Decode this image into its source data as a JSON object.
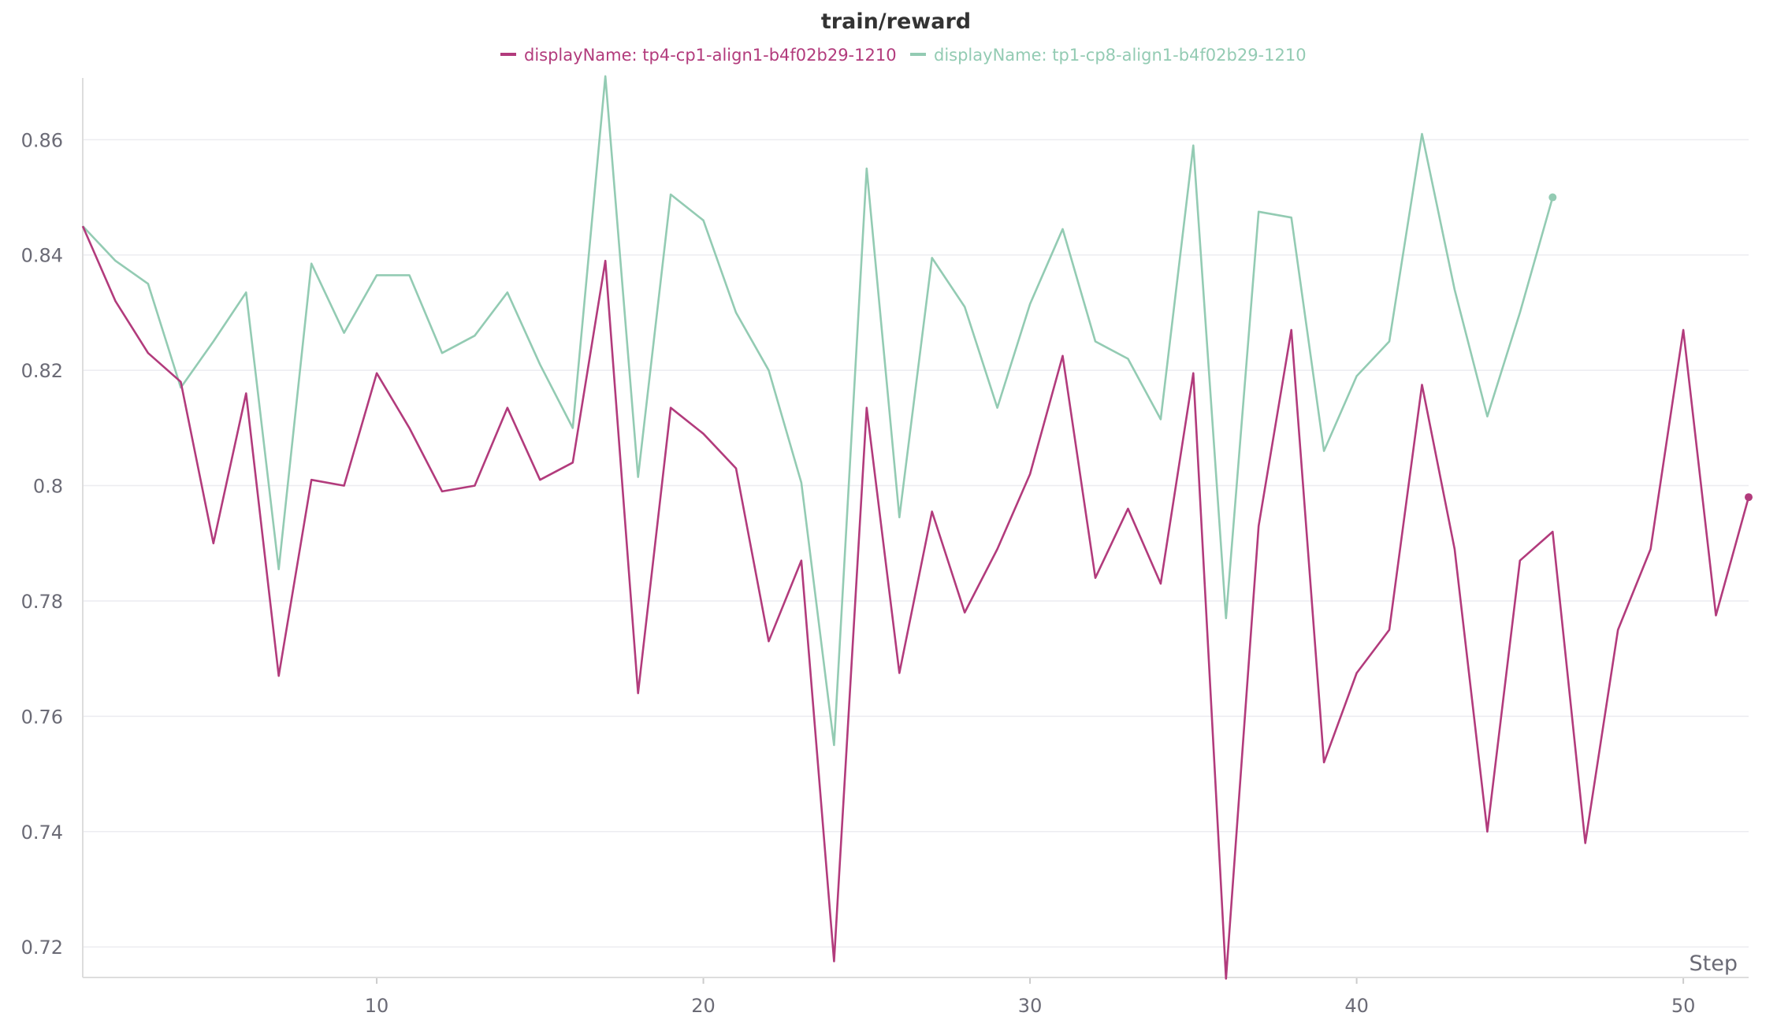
{
  "chart_data": {
    "type": "line",
    "title": "train/reward",
    "xlabel": "Step",
    "ylabel": "",
    "xlim": [
      1,
      52
    ],
    "ylim": [
      0.7147,
      0.8707
    ],
    "grid": true,
    "legend_placement": "top-center",
    "x_ticks": [
      10,
      20,
      30,
      40,
      50
    ],
    "x_tick_labels": [
      "10",
      "20",
      "30",
      "40",
      "50"
    ],
    "y_ticks": [
      0.72,
      0.74,
      0.76,
      0.78,
      0.8,
      0.82,
      0.84,
      0.86
    ],
    "y_tick_labels": [
      "0.72",
      "0.74",
      "0.76",
      "0.78",
      "0.8",
      "0.82",
      "0.84",
      "0.86"
    ],
    "series": [
      {
        "name": "displayName: tp4-cp1-align1-b4f02b29-1210",
        "color": "#b23b7c",
        "x_start": 1,
        "values": [
          0.845,
          0.832,
          0.823,
          0.818,
          0.79,
          0.816,
          0.767,
          0.801,
          0.8,
          0.8195,
          0.81,
          0.799,
          0.8,
          0.8135,
          0.801,
          0.804,
          0.839,
          0.764,
          0.8135,
          0.809,
          0.803,
          0.773,
          0.787,
          0.7175,
          0.8135,
          0.7675,
          0.7955,
          0.778,
          0.789,
          0.802,
          0.8225,
          0.784,
          0.796,
          0.783,
          0.8195,
          0.7145,
          0.793,
          0.827,
          0.752,
          0.7675,
          0.775,
          0.8175,
          0.789,
          0.74,
          0.787,
          0.792,
          0.738,
          0.775,
          0.789,
          0.827,
          0.7775,
          0.798
        ]
      },
      {
        "name": "displayName: tp1-cp8-align1-b4f02b29-1210",
        "color": "#93cbb3",
        "x_start": 1,
        "values": [
          0.845,
          0.839,
          0.835,
          0.817,
          0.825,
          0.8335,
          0.7855,
          0.8385,
          0.8265,
          0.8365,
          0.8365,
          0.823,
          0.826,
          0.8335,
          0.821,
          0.81,
          0.871,
          0.8015,
          0.8505,
          0.846,
          0.83,
          0.82,
          0.8005,
          0.755,
          0.855,
          0.7945,
          0.8395,
          0.831,
          0.8135,
          0.8315,
          0.8445,
          0.825,
          0.822,
          0.8115,
          0.859,
          0.777,
          0.8475,
          0.8465,
          0.806,
          0.819,
          0.825,
          0.861,
          0.834,
          0.812,
          0.83,
          0.85
        ]
      }
    ]
  }
}
